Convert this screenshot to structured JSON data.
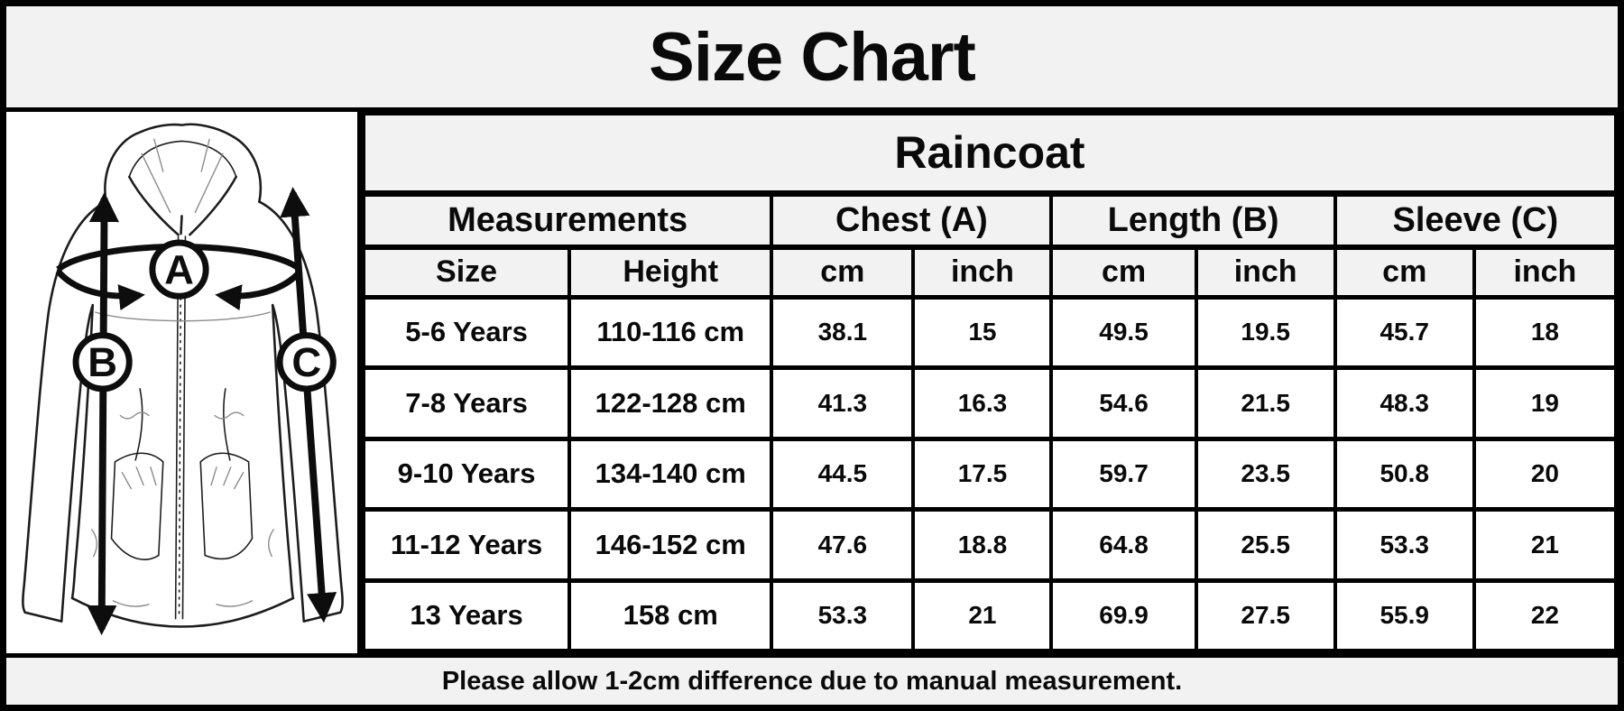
{
  "title": "Size Chart",
  "chart_data": {
    "type": "table",
    "title": "Size Chart",
    "product": "Raincoat",
    "group_headers": [
      "Measurements",
      "Chest (A)",
      "Length (B)",
      "Sleeve (C)"
    ],
    "sub_headers": [
      "Size",
      "Height",
      "cm",
      "inch",
      "cm",
      "inch",
      "cm",
      "inch"
    ],
    "rows": [
      [
        "5-6 Years",
        "110-116 cm",
        "38.1",
        "15",
        "49.5",
        "19.5",
        "45.7",
        "18"
      ],
      [
        "7-8 Years",
        "122-128 cm",
        "41.3",
        "16.3",
        "54.6",
        "21.5",
        "48.3",
        "19"
      ],
      [
        "9-10 Years",
        "134-140 cm",
        "44.5",
        "17.5",
        "59.7",
        "23.5",
        "50.8",
        "20"
      ],
      [
        "11-12 Years",
        "146-152 cm",
        "47.6",
        "18.8",
        "64.8",
        "25.5",
        "53.3",
        "21"
      ],
      [
        "13 Years",
        "158 cm",
        "53.3",
        "21",
        "69.9",
        "27.5",
        "55.9",
        "22"
      ]
    ],
    "note": "Please allow 1-2cm difference due to manual measurement."
  },
  "diagram": {
    "garment": "hooded raincoat line drawing",
    "labels": {
      "chest": "A",
      "length": "B",
      "sleeve": "C"
    }
  },
  "colors": {
    "band_gray": "#f2f2f2",
    "cell_white": "#ffffff",
    "border_black": "#000000",
    "text_black": "#111111"
  }
}
